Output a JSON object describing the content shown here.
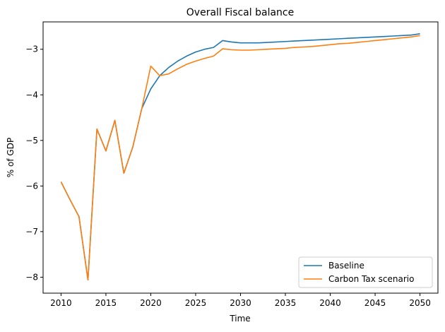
{
  "chart_data": {
    "type": "line",
    "title": "Overall Fiscal balance",
    "xlabel": "Time",
    "ylabel": "% of GDP",
    "xlim": [
      2008,
      2052
    ],
    "ylim": [
      -8.35,
      -2.4
    ],
    "xticks": [
      2010,
      2015,
      2020,
      2025,
      2030,
      2035,
      2040,
      2045,
      2050
    ],
    "yticks": [
      -8,
      -7,
      -6,
      -5,
      -4,
      -3
    ],
    "ytick_labels": [
      "−8",
      "−7",
      "−6",
      "−5",
      "−4",
      "−3"
    ],
    "grid": false,
    "legend_position": "lower-right",
    "x": [
      2010,
      2011,
      2012,
      2013,
      2014,
      2015,
      2016,
      2017,
      2018,
      2019,
      2020,
      2021,
      2022,
      2023,
      2024,
      2025,
      2026,
      2027,
      2028,
      2029,
      2030,
      2031,
      2032,
      2033,
      2034,
      2035,
      2036,
      2037,
      2038,
      2039,
      2040,
      2041,
      2042,
      2043,
      2044,
      2045,
      2046,
      2047,
      2048,
      2049,
      2050
    ],
    "series": [
      {
        "name": "Baseline",
        "color": "#1f77b4",
        "values": [
          -5.91,
          -6.3,
          -6.67,
          -8.06,
          -4.75,
          -5.23,
          -4.56,
          -5.72,
          -5.14,
          -4.3,
          -3.87,
          -3.58,
          -3.4,
          -3.26,
          -3.15,
          -3.06,
          -3.0,
          -2.96,
          -2.81,
          -2.84,
          -2.86,
          -2.86,
          -2.86,
          -2.85,
          -2.84,
          -2.83,
          -2.82,
          -2.81,
          -2.8,
          -2.79,
          -2.78,
          -2.77,
          -2.76,
          -2.75,
          -2.74,
          -2.73,
          -2.72,
          -2.71,
          -2.7,
          -2.69,
          -2.66
        ]
      },
      {
        "name": "Carbon Tax scenario",
        "color": "#ff7f0e",
        "values": [
          -5.91,
          -6.3,
          -6.67,
          -8.06,
          -4.75,
          -5.23,
          -4.56,
          -5.72,
          -5.14,
          -4.3,
          -3.37,
          -3.58,
          -3.54,
          -3.43,
          -3.33,
          -3.26,
          -3.2,
          -3.15,
          -2.99,
          -3.01,
          -3.02,
          -3.02,
          -3.01,
          -3.0,
          -2.99,
          -2.98,
          -2.96,
          -2.95,
          -2.94,
          -2.92,
          -2.9,
          -2.88,
          -2.87,
          -2.85,
          -2.83,
          -2.81,
          -2.79,
          -2.77,
          -2.75,
          -2.73,
          -2.7
        ]
      }
    ]
  }
}
